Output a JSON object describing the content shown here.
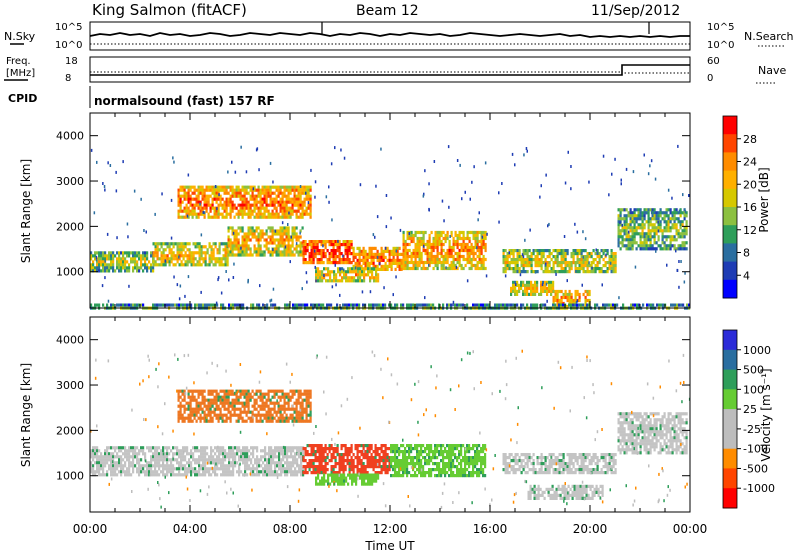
{
  "header": {
    "station": "King Salmon (fitACF)",
    "beam": "Beam 12",
    "date": "11/Sep/2012"
  },
  "strips": {
    "nsky_label": "N.Sky",
    "nsearch_label": "N.Search",
    "left_ticks": [
      "10^5",
      "10^0"
    ],
    "right_ticks": [
      "10^5",
      "10^0"
    ],
    "freq_label_line1": "Freq.",
    "freq_label_line2": "[MHz]",
    "freq_ticks": [
      "18",
      "8"
    ],
    "nave_label": "Nave",
    "nave_ticks": [
      "60",
      "0"
    ],
    "cpid_label": "CPID",
    "cpid_text": "normalsound (fast) 157 RF"
  },
  "chart_data": [
    {
      "type": "heatmap",
      "panel": "power",
      "ylabel": "Slant Range [km]",
      "ylim": [
        200,
        4500
      ],
      "yticks": [
        "1000",
        "2000",
        "3000",
        "4000"
      ],
      "xlim": [
        0,
        24
      ],
      "colorbar": {
        "label": "Power [dB]",
        "ticks": [
          "28",
          "24",
          "20",
          "16",
          "12",
          "8",
          "4"
        ],
        "colors": [
          "#ff0000",
          "#ff4500",
          "#ff8c00",
          "#ffb000",
          "#d6c800",
          "#8cc040",
          "#2e9e5a",
          "#2a6ea0",
          "#1e3cb4",
          "#0000ff"
        ]
      },
      "regions": [
        {
          "t0": 0.0,
          "t1": 2.5,
          "r0": 1050,
          "r1": 1450,
          "level": 0.35
        },
        {
          "t0": 2.5,
          "t1": 5.5,
          "r0": 1150,
          "r1": 1650,
          "level": 0.45
        },
        {
          "t0": 5.5,
          "t1": 8.5,
          "r0": 1400,
          "r1": 2000,
          "level": 0.5
        },
        {
          "t0": 3.5,
          "t1": 8.8,
          "r0": 2200,
          "r1": 2900,
          "level": 0.6
        },
        {
          "t0": 8.5,
          "t1": 10.5,
          "r0": 1200,
          "r1": 1700,
          "level": 0.75
        },
        {
          "t0": 10.5,
          "t1": 12.5,
          "r0": 1050,
          "r1": 1550,
          "level": 0.6
        },
        {
          "t0": 12.5,
          "t1": 15.8,
          "r0": 1100,
          "r1": 1900,
          "level": 0.55
        },
        {
          "t0": 9.0,
          "t1": 11.5,
          "r0": 800,
          "r1": 1100,
          "level": 0.45
        },
        {
          "t0": 16.5,
          "t1": 21.0,
          "r0": 1000,
          "r1": 1500,
          "level": 0.4
        },
        {
          "t0": 16.8,
          "t1": 18.5,
          "r0": 500,
          "r1": 800,
          "level": 0.45
        },
        {
          "t0": 18.5,
          "t1": 20.0,
          "r0": 250,
          "r1": 600,
          "level": 0.55
        },
        {
          "t0": 21.1,
          "t1": 23.9,
          "r0": 1500,
          "r1": 2400,
          "level": 0.3
        },
        {
          "t0": 0.0,
          "t1": 24.0,
          "r0": 200,
          "r1": 300,
          "level": 0.25
        }
      ]
    },
    {
      "type": "heatmap",
      "panel": "velocity",
      "ylabel": "Slant Range [km]",
      "ylim": [
        200,
        4500
      ],
      "yticks": [
        "1000",
        "2000",
        "3000",
        "4000"
      ],
      "xlim": [
        0,
        24
      ],
      "xticks": [
        "00:00",
        "04:00",
        "08:00",
        "12:00",
        "16:00",
        "20:00",
        "00:00"
      ],
      "xlabel": "Time UT",
      "colorbar": {
        "label": "Velocity [m s⁻¹]",
        "ticks": [
          "1000",
          "500",
          "100",
          "25",
          "-25",
          "-100",
          "-500",
          "-1000"
        ],
        "colors": [
          "#2b2bd8",
          "#2a6ea0",
          "#2e9e5a",
          "#66cc33",
          "#bdbdbd",
          "#bdbdbd",
          "#ff8c00",
          "#ff4500",
          "#ff0000"
        ]
      },
      "regions": [
        {
          "t0": 0.0,
          "t1": 8.5,
          "r0": 1050,
          "r1": 1650,
          "color": "#c4c4c4"
        },
        {
          "t0": 3.5,
          "t1": 8.8,
          "r0": 2200,
          "r1": 2900,
          "color": "#ee7722"
        },
        {
          "t0": 8.5,
          "t1": 12.0,
          "r0": 1100,
          "r1": 1700,
          "color": "#f04020"
        },
        {
          "t0": 12.0,
          "t1": 15.8,
          "r0": 1000,
          "r1": 1700,
          "color": "#66cc33"
        },
        {
          "t0": 16.5,
          "t1": 21.0,
          "r0": 1100,
          "r1": 1500,
          "color": "#c4c4c4"
        },
        {
          "t0": 17.5,
          "t1": 20.5,
          "r0": 500,
          "r1": 800,
          "color": "#c4c4c4"
        },
        {
          "t0": 21.1,
          "t1": 23.9,
          "r0": 1500,
          "r1": 2400,
          "color": "#c4c4c4"
        },
        {
          "t0": 9.0,
          "t1": 11.5,
          "r0": 800,
          "r1": 1050,
          "color": "#66cc33"
        }
      ]
    }
  ]
}
